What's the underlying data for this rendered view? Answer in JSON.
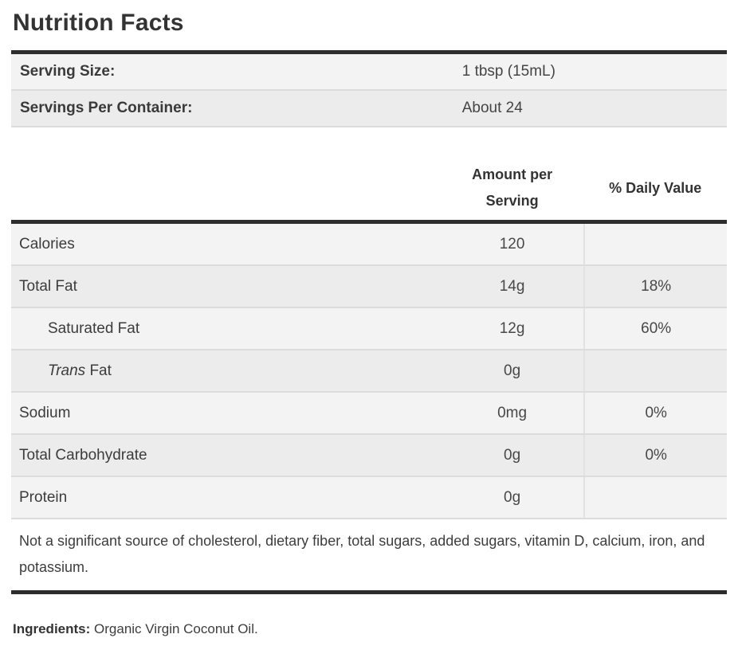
{
  "title": "Nutrition Facts",
  "serving_info": {
    "rows": [
      {
        "label": "Serving Size:",
        "value": "1 tbsp (15mL)"
      },
      {
        "label": "Servings Per Container:",
        "value": "About 24"
      }
    ]
  },
  "nutrition_table": {
    "headers": {
      "amount": "Amount per Serving",
      "daily_value": "% Daily Value"
    },
    "rows": [
      {
        "label": "Calories",
        "amount": "120",
        "daily_value": ""
      },
      {
        "label": "Total Fat",
        "amount": "14g",
        "daily_value": "18%"
      },
      {
        "label": "Saturated Fat",
        "amount": "12g",
        "daily_value": "60%"
      },
      {
        "label_italic": "Trans",
        "label": " Fat",
        "amount": "0g",
        "daily_value": ""
      },
      {
        "label": "Sodium",
        "amount": "0mg",
        "daily_value": "0%"
      },
      {
        "label": "Total Carbohydrate",
        "amount": "0g",
        "daily_value": "0%"
      },
      {
        "label": "Protein",
        "amount": "0g",
        "daily_value": ""
      }
    ]
  },
  "footnote": "Not a significant source of cholesterol, dietary fiber, total sugars, added sugars, vitamin D, calcium, iron, and potassium.",
  "ingredients": {
    "label": "Ingredients:",
    "value": " Organic Virgin Coconut Oil."
  },
  "colors": {
    "thick_rule": "#2d2d2d",
    "row_stripe_light": "#f3f3f3",
    "row_stripe_dark": "#ececec",
    "row_separator": "#dcdcdc",
    "text": "#3a3a3a"
  }
}
